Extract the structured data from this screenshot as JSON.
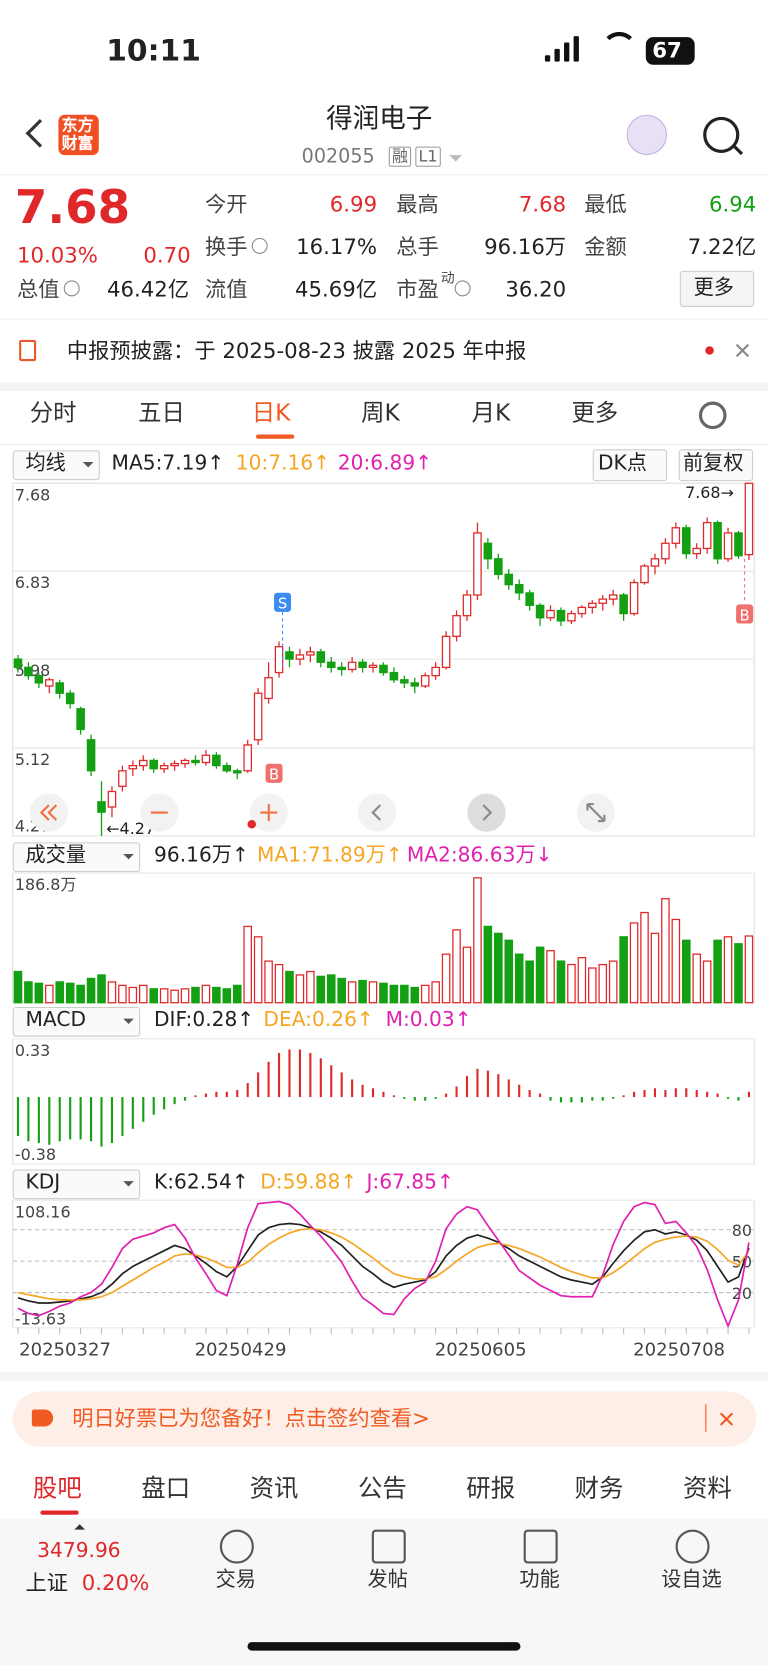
{
  "status_bar": {
    "time": "10:11",
    "battery": "67"
  },
  "header": {
    "logo": [
      "东方",
      "财富"
    ],
    "title": "得润电子",
    "code": "002055",
    "tags": [
      "融",
      "L1"
    ]
  },
  "quote": {
    "price": "7.68",
    "change_pct": "10.03%",
    "change": "0.70",
    "fields": [
      {
        "label": "今开",
        "value": "6.99"
      },
      {
        "label": "最高",
        "value": "7.68"
      },
      {
        "label": "最低",
        "value": "6.94"
      },
      {
        "label": "换手",
        "value": "16.17%"
      },
      {
        "label": "总手",
        "value": "96.16万"
      },
      {
        "label": "金额",
        "value": "7.22亿"
      },
      {
        "label": "总值",
        "value": "46.42亿"
      },
      {
        "label": "流值",
        "value": "45.69亿"
      },
      {
        "label": "市盈",
        "sup": "动",
        "value": "36.20"
      }
    ],
    "more": "更多"
  },
  "notice": "中报预披露：于 2025-08-23 披露 2025 年中报",
  "tabs": [
    "分时",
    "五日",
    "日K",
    "周K",
    "月K",
    "更多"
  ],
  "kline": {
    "selector": "均线",
    "ma_labels": [
      "MA5:7.19↑",
      "10:7.16↑",
      "20:6.89↑"
    ],
    "buttons": [
      "DK点",
      "前复权"
    ],
    "ylim": [
      4.27,
      7.68
    ],
    "yticks": [
      7.68,
      6.83,
      5.98,
      5.12,
      4.27
    ],
    "high_label": "7.68→",
    "low_label": "←4.27",
    "markers": [
      "S",
      "B",
      "B"
    ],
    "candles": [
      [
        5.98,
        6.02,
        5.85,
        5.9
      ],
      [
        5.9,
        5.95,
        5.78,
        5.82
      ],
      [
        5.82,
        5.85,
        5.7,
        5.75
      ],
      [
        5.72,
        5.8,
        5.65,
        5.78
      ],
      [
        5.75,
        5.78,
        5.6,
        5.65
      ],
      [
        5.65,
        5.68,
        5.5,
        5.55
      ],
      [
        5.5,
        5.52,
        5.25,
        5.3
      ],
      [
        5.2,
        5.25,
        4.85,
        4.9
      ],
      [
        4.6,
        4.8,
        4.27,
        4.5
      ],
      [
        4.55,
        4.75,
        4.45,
        4.7
      ],
      [
        4.75,
        4.95,
        4.7,
        4.9
      ],
      [
        4.92,
        5.0,
        4.85,
        4.95
      ],
      [
        4.95,
        5.05,
        4.9,
        5.0
      ],
      [
        5.0,
        5.02,
        4.88,
        4.92
      ],
      [
        4.92,
        4.98,
        4.88,
        4.95
      ],
      [
        4.95,
        5.0,
        4.9,
        4.97
      ],
      [
        4.97,
        5.02,
        4.93,
        5.0
      ],
      [
        5.0,
        5.05,
        4.95,
        4.98
      ],
      [
        4.98,
        5.1,
        4.95,
        5.05
      ],
      [
        5.05,
        5.08,
        4.92,
        4.95
      ],
      [
        4.95,
        4.98,
        4.88,
        4.9
      ],
      [
        4.9,
        4.92,
        4.82,
        4.88
      ],
      [
        4.9,
        5.2,
        4.88,
        5.15
      ],
      [
        5.2,
        5.7,
        5.15,
        5.65
      ],
      [
        5.6,
        5.95,
        5.55,
        5.8
      ],
      [
        5.85,
        6.15,
        5.8,
        6.1
      ],
      [
        6.05,
        6.1,
        5.9,
        5.98
      ],
      [
        5.98,
        6.08,
        5.92,
        6.02
      ],
      [
        6.02,
        6.1,
        5.95,
        6.05
      ],
      [
        6.05,
        6.08,
        5.9,
        5.95
      ],
      [
        5.95,
        6.0,
        5.85,
        5.9
      ],
      [
        5.9,
        5.95,
        5.82,
        5.88
      ],
      [
        5.88,
        6.0,
        5.85,
        5.95
      ],
      [
        5.95,
        5.98,
        5.85,
        5.9
      ],
      [
        5.9,
        5.95,
        5.85,
        5.92
      ],
      [
        5.92,
        5.95,
        5.82,
        5.85
      ],
      [
        5.85,
        5.9,
        5.75,
        5.78
      ],
      [
        5.78,
        5.82,
        5.7,
        5.75
      ],
      [
        5.75,
        5.8,
        5.65,
        5.72
      ],
      [
        5.72,
        5.85,
        5.7,
        5.82
      ],
      [
        5.82,
        5.95,
        5.78,
        5.9
      ],
      [
        5.9,
        6.25,
        5.88,
        6.2
      ],
      [
        6.2,
        6.45,
        6.15,
        6.4
      ],
      [
        6.4,
        6.65,
        6.35,
        6.6
      ],
      [
        6.6,
        7.3,
        6.55,
        7.2
      ],
      [
        7.1,
        7.15,
        6.85,
        6.95
      ],
      [
        6.95,
        7.0,
        6.75,
        6.8
      ],
      [
        6.8,
        6.85,
        6.65,
        6.7
      ],
      [
        6.7,
        6.75,
        6.55,
        6.62
      ],
      [
        6.62,
        6.65,
        6.45,
        6.5
      ],
      [
        6.5,
        6.52,
        6.3,
        6.38
      ],
      [
        6.38,
        6.5,
        6.35,
        6.45
      ],
      [
        6.45,
        6.48,
        6.3,
        6.35
      ],
      [
        6.35,
        6.45,
        6.32,
        6.42
      ],
      [
        6.42,
        6.5,
        6.38,
        6.48
      ],
      [
        6.48,
        6.55,
        6.42,
        6.52
      ],
      [
        6.52,
        6.6,
        6.45,
        6.56
      ],
      [
        6.56,
        6.65,
        6.5,
        6.6
      ],
      [
        6.6,
        6.62,
        6.35,
        6.42
      ],
      [
        6.42,
        6.75,
        6.4,
        6.72
      ],
      [
        6.72,
        6.9,
        6.7,
        6.88
      ],
      [
        6.88,
        7.0,
        6.8,
        6.95
      ],
      [
        6.95,
        7.15,
        6.9,
        7.1
      ],
      [
        7.1,
        7.3,
        7.05,
        7.25
      ],
      [
        7.25,
        7.28,
        6.95,
        7.0
      ],
      [
        7.0,
        7.1,
        6.95,
        7.05
      ],
      [
        7.05,
        7.35,
        7.0,
        7.3
      ],
      [
        7.3,
        7.32,
        6.9,
        6.95
      ],
      [
        6.95,
        7.25,
        6.92,
        7.2
      ],
      [
        7.2,
        7.22,
        6.95,
        6.98
      ],
      [
        6.99,
        7.68,
        6.94,
        7.68
      ]
    ],
    "dates": [
      "20250327",
      null,
      null,
      null,
      null,
      null,
      null,
      null,
      null,
      null,
      null,
      null,
      null,
      null,
      null,
      null,
      null,
      null,
      null,
      null,
      null,
      null,
      "20250429",
      null,
      null,
      null,
      null,
      null,
      null,
      null,
      null,
      null,
      null,
      null,
      null,
      null,
      null,
      null,
      null,
      null,
      null,
      null,
      null,
      null,
      null,
      "20250605",
      null,
      null,
      null,
      null,
      null,
      null,
      null,
      null,
      null,
      null,
      null,
      null,
      null,
      null,
      null,
      null,
      null,
      null,
      "20250708",
      null,
      null,
      null,
      null,
      null,
      null
    ]
  },
  "volume": {
    "selector": "成交量",
    "labels": [
      "96.16万↑",
      "MA1:71.89万↑",
      "MA2:86.63万↓"
    ],
    "ylim": [
      0,
      186.8
    ],
    "yticks": [
      {
        "value": 186.8,
        "label": "186.8万"
      }
    ],
    "values": [
      45,
      30,
      28,
      25,
      30,
      28,
      25,
      35,
      40,
      30,
      25,
      22,
      25,
      20,
      20,
      18,
      20,
      22,
      25,
      22,
      20,
      25,
      110,
      95,
      60,
      55,
      45,
      40,
      45,
      38,
      40,
      35,
      30,
      32,
      30,
      28,
      25,
      25,
      22,
      25,
      30,
      70,
      105,
      80,
      180,
      110,
      100,
      90,
      70,
      60,
      80,
      75,
      60,
      55,
      65,
      50,
      55,
      60,
      95,
      115,
      130,
      100,
      150,
      120,
      90,
      70,
      60,
      90,
      95,
      85,
      96.16
    ]
  },
  "macd": {
    "selector": "MACD",
    "labels": [
      "DIF:0.28↑",
      "DEA:0.26↑",
      "M:0.03↑"
    ],
    "ylim": [
      -0.38,
      0.33
    ],
    "yticks": [
      0.33,
      -0.38
    ],
    "hist": [
      -0.22,
      -0.25,
      -0.26,
      -0.27,
      -0.25,
      -0.24,
      -0.24,
      -0.25,
      -0.28,
      -0.26,
      -0.22,
      -0.18,
      -0.14,
      -0.1,
      -0.07,
      -0.04,
      -0.02,
      0.01,
      0.02,
      0.03,
      0.03,
      0.04,
      0.08,
      0.14,
      0.2,
      0.25,
      0.27,
      0.27,
      0.25,
      0.22,
      0.18,
      0.14,
      0.1,
      0.07,
      0.05,
      0.03,
      0.01,
      -0.01,
      -0.02,
      -0.02,
      -0.01,
      0.02,
      0.06,
      0.12,
      0.16,
      0.15,
      0.13,
      0.1,
      0.07,
      0.04,
      0.02,
      -0.02,
      -0.03,
      -0.03,
      -0.03,
      -0.02,
      -0.02,
      -0.01,
      0.01,
      0.03,
      0.04,
      0.05,
      0.04,
      0.05,
      0.05,
      0.04,
      0.03,
      0.02,
      -0.01,
      -0.02,
      0.03
    ]
  },
  "kdj": {
    "selector": "KDJ",
    "labels": [
      "K:62.54↑",
      "D:59.88↑",
      "J:67.85↑"
    ],
    "ylim": [
      -13.63,
      108.16
    ],
    "yticks": [
      108.16,
      -13.63
    ],
    "right_ticks": [
      80,
      50,
      20
    ],
    "K": [
      15,
      12,
      10,
      10,
      11,
      12,
      14,
      16,
      20,
      28,
      38,
      45,
      50,
      55,
      60,
      65,
      62,
      55,
      48,
      40,
      35,
      45,
      60,
      75,
      82,
      85,
      86,
      85,
      82,
      78,
      72,
      65,
      55,
      45,
      38,
      30,
      25,
      28,
      30,
      32,
      40,
      55,
      65,
      72,
      75,
      72,
      68,
      62,
      55,
      50,
      45,
      40,
      35,
      32,
      30,
      28,
      35,
      48,
      60,
      70,
      78,
      80,
      76,
      78,
      75,
      70,
      60,
      45,
      30,
      35,
      62.54
    ],
    "D": [
      20,
      18,
      16,
      14,
      13,
      13,
      13,
      14,
      16,
      20,
      26,
      32,
      38,
      44,
      49,
      55,
      57,
      56,
      53,
      49,
      44,
      44,
      49,
      58,
      66,
      72,
      77,
      80,
      81,
      80,
      77,
      73,
      67,
      60,
      53,
      45,
      38,
      35,
      33,
      33,
      35,
      42,
      50,
      57,
      63,
      66,
      67,
      65,
      62,
      58,
      54,
      49,
      44,
      40,
      37,
      34,
      34,
      39,
      46,
      54,
      62,
      68,
      71,
      73,
      74,
      73,
      69,
      61,
      51,
      46,
      59.88
    ],
    "J": [
      5,
      0,
      -2,
      2,
      7,
      10,
      16,
      20,
      28,
      44,
      62,
      71,
      74,
      77,
      82,
      85,
      72,
      53,
      38,
      22,
      17,
      47,
      82,
      105,
      106,
      107,
      104,
      95,
      84,
      74,
      62,
      49,
      31,
      15,
      8,
      0,
      -1,
      14,
      24,
      30,
      50,
      81,
      95,
      102,
      99,
      84,
      70,
      56,
      41,
      34,
      27,
      22,
      17,
      16,
      16,
      16,
      37,
      66,
      88,
      102,
      106,
      104,
      86,
      88,
      77,
      64,
      42,
      13,
      -12,
      13,
      67.85
    ]
  },
  "banner": "明日好票已为您备好！点击签约查看>",
  "bottom_tabs": [
    "股吧",
    "盘口",
    "资讯",
    "公告",
    "研报",
    "财务",
    "资料"
  ],
  "bottom_bar": {
    "index_value": "3479.96",
    "index_name": "上证",
    "index_pct": "0.20%",
    "actions": [
      "交易",
      "发帖",
      "功能",
      "设自选"
    ]
  }
}
